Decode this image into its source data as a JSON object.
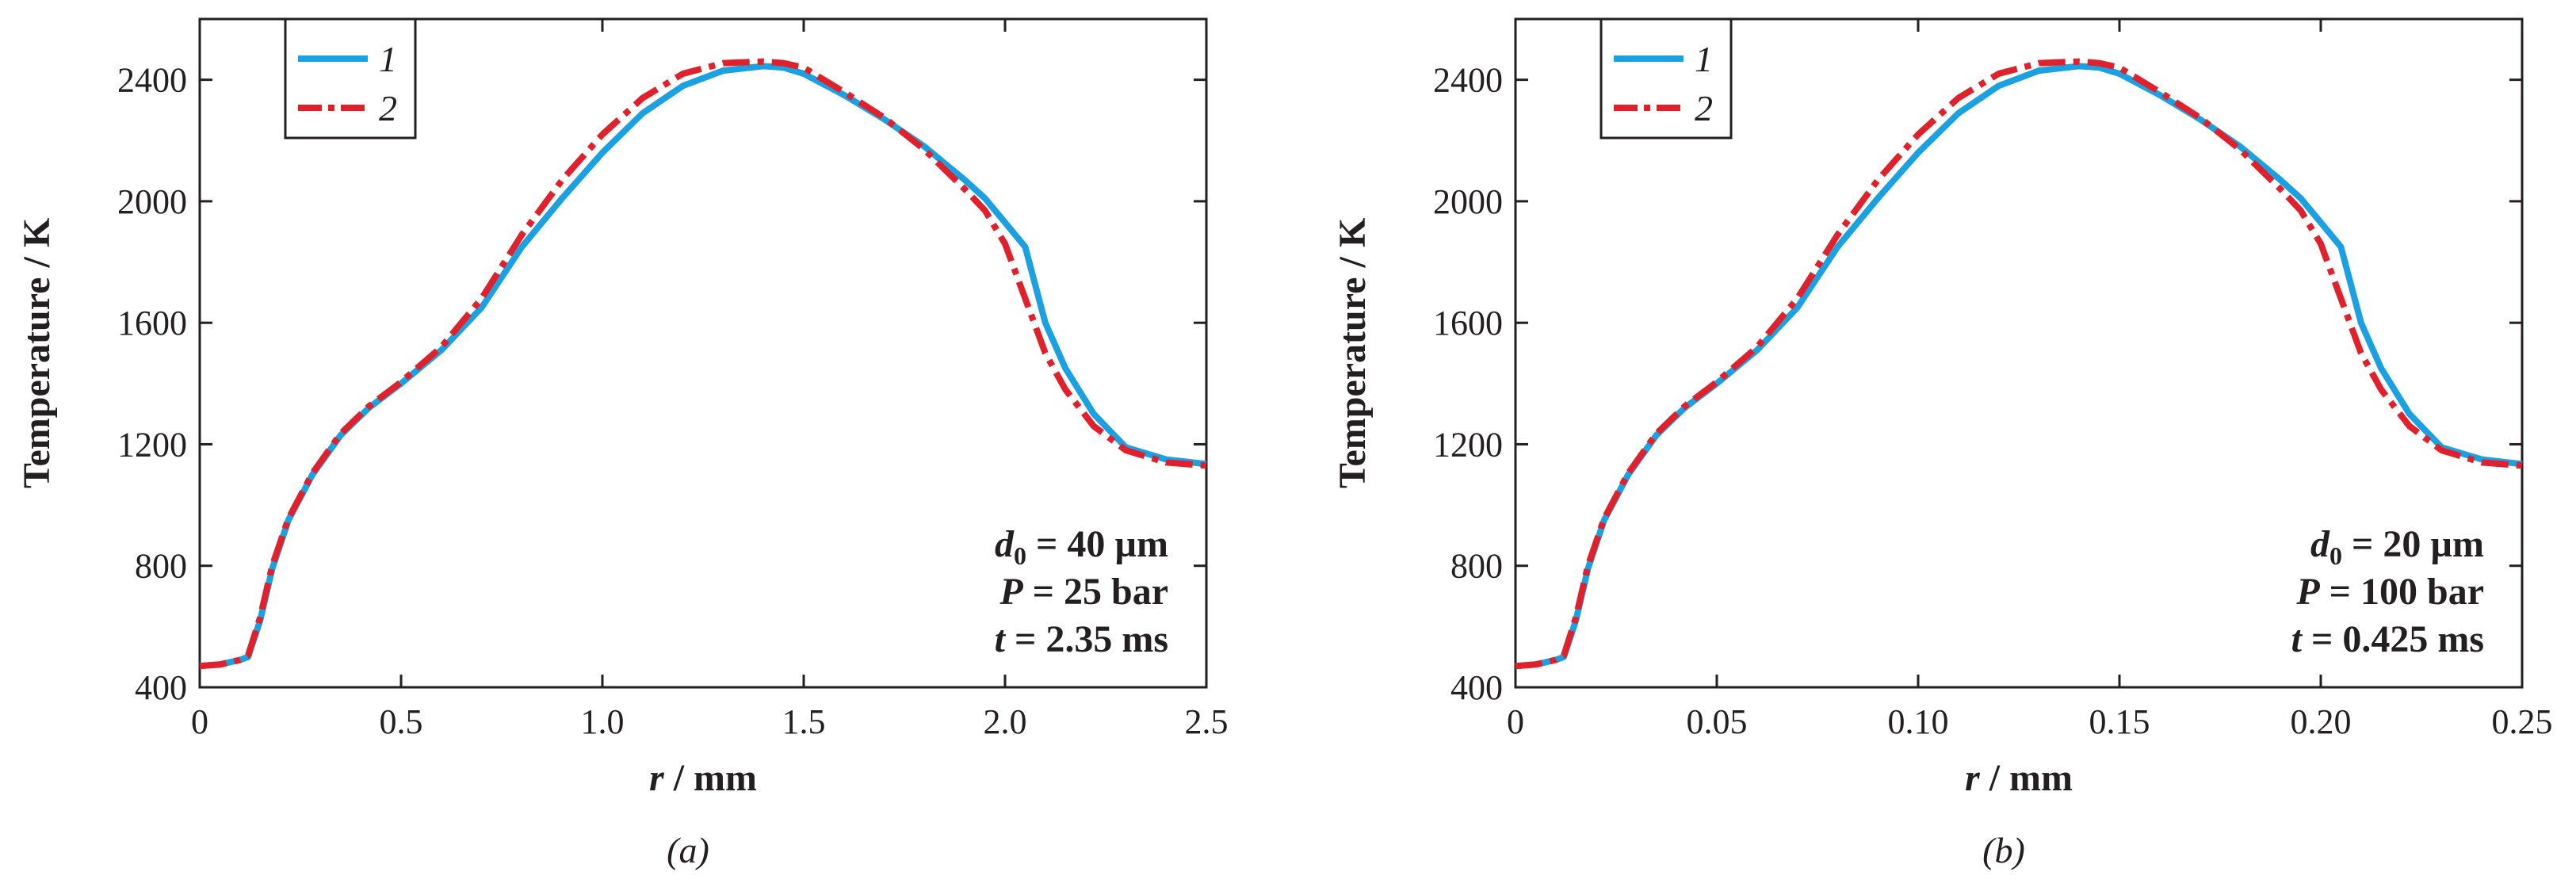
{
  "figure_captions": [
    "(a)",
    "(b)"
  ],
  "legend_entries": [
    "1",
    "2"
  ],
  "colors": {
    "series_1": "#1ba1e2",
    "series_2": "#e0202a",
    "axis": "#231f20"
  },
  "chart_data": [
    {
      "type": "line",
      "panel": "(a)",
      "title": "",
      "xlabel": "r / mm",
      "ylabel": "Temperature / K",
      "xlim": [
        0,
        2.5
      ],
      "ylim": [
        400,
        2600
      ],
      "xticks": [
        0,
        0.5,
        1.0,
        1.5,
        2.0,
        2.5
      ],
      "xtick_labels": [
        "0",
        "0.5",
        "1.0",
        "1.5",
        "2.0",
        "2.5"
      ],
      "yticks": [
        400,
        800,
        1200,
        1600,
        2000,
        2400
      ],
      "ytick_labels": [
        "400",
        "800",
        "1200",
        "1600",
        "2000",
        "2400"
      ],
      "legend": "top-left",
      "annotation": [
        {
          "var": "d",
          "sub": "0",
          "rest": " = 40 µm"
        },
        {
          "var": "P",
          "sub": "",
          "rest": " = 25 bar"
        },
        {
          "var": "t",
          "sub": "",
          "rest": " = 2.35 ms"
        }
      ],
      "series": [
        {
          "name": "1",
          "x": [
            0,
            0.05,
            0.1,
            0.12,
            0.15,
            0.18,
            0.22,
            0.28,
            0.35,
            0.42,
            0.5,
            0.6,
            0.7,
            0.8,
            0.9,
            1.0,
            1.1,
            1.2,
            1.3,
            1.4,
            1.45,
            1.5,
            1.6,
            1.7,
            1.8,
            1.9,
            1.95,
            2.0,
            2.05,
            2.1,
            2.15,
            2.22,
            2.3,
            2.4,
            2.5
          ],
          "values": [
            470,
            475,
            490,
            500,
            620,
            790,
            950,
            1100,
            1230,
            1320,
            1400,
            1510,
            1650,
            1850,
            2010,
            2160,
            2290,
            2380,
            2430,
            2445,
            2440,
            2420,
            2350,
            2270,
            2180,
            2070,
            2010,
            1930,
            1850,
            1600,
            1450,
            1300,
            1190,
            1150,
            1135
          ]
        },
        {
          "name": "2",
          "x": [
            0,
            0.05,
            0.1,
            0.12,
            0.15,
            0.18,
            0.22,
            0.28,
            0.35,
            0.42,
            0.5,
            0.6,
            0.7,
            0.8,
            0.9,
            1.0,
            1.1,
            1.2,
            1.3,
            1.4,
            1.45,
            1.5,
            1.6,
            1.7,
            1.8,
            1.9,
            1.95,
            2.0,
            2.05,
            2.1,
            2.15,
            2.22,
            2.3,
            2.4,
            2.5
          ],
          "values": [
            470,
            475,
            490,
            505,
            630,
            800,
            955,
            1105,
            1235,
            1325,
            1405,
            1520,
            1680,
            1890,
            2070,
            2220,
            2340,
            2420,
            2455,
            2460,
            2455,
            2440,
            2360,
            2275,
            2170,
            2040,
            1970,
            1860,
            1680,
            1500,
            1380,
            1260,
            1180,
            1140,
            1130
          ]
        }
      ]
    },
    {
      "type": "line",
      "panel": "(b)",
      "title": "",
      "xlabel": "r / mm",
      "ylabel": "Temperature / K",
      "xlim": [
        0,
        0.25
      ],
      "ylim": [
        400,
        2600
      ],
      "xticks": [
        0,
        0.05,
        0.1,
        0.15,
        0.2,
        0.25
      ],
      "xtick_labels": [
        "0",
        "0.05",
        "0.10",
        "0.15",
        "0.20",
        "0.25"
      ],
      "yticks": [
        400,
        800,
        1200,
        1600,
        2000,
        2400
      ],
      "ytick_labels": [
        "400",
        "800",
        "1200",
        "1600",
        "2000",
        "2400"
      ],
      "legend": "top-left",
      "annotation": [
        {
          "var": "d",
          "sub": "0",
          "rest": " = 20 µm"
        },
        {
          "var": "P",
          "sub": "",
          "rest": " = 100 bar"
        },
        {
          "var": "t",
          "sub": "",
          "rest": " = 0.425 ms"
        }
      ],
      "series": [
        {
          "name": "1",
          "x": [
            0,
            0.005,
            0.01,
            0.012,
            0.015,
            0.018,
            0.022,
            0.028,
            0.035,
            0.042,
            0.05,
            0.06,
            0.07,
            0.08,
            0.09,
            0.1,
            0.11,
            0.12,
            0.13,
            0.14,
            0.145,
            0.15,
            0.16,
            0.17,
            0.18,
            0.19,
            0.195,
            0.2,
            0.205,
            0.21,
            0.215,
            0.222,
            0.23,
            0.24,
            0.25
          ],
          "values": [
            470,
            475,
            490,
            500,
            620,
            790,
            950,
            1100,
            1230,
            1320,
            1400,
            1510,
            1650,
            1850,
            2010,
            2160,
            2290,
            2380,
            2430,
            2445,
            2440,
            2420,
            2350,
            2270,
            2180,
            2070,
            2010,
            1930,
            1850,
            1600,
            1450,
            1300,
            1190,
            1150,
            1135
          ]
        },
        {
          "name": "2",
          "x": [
            0,
            0.005,
            0.01,
            0.012,
            0.015,
            0.018,
            0.022,
            0.028,
            0.035,
            0.042,
            0.05,
            0.06,
            0.07,
            0.08,
            0.09,
            0.1,
            0.11,
            0.12,
            0.13,
            0.14,
            0.145,
            0.15,
            0.16,
            0.17,
            0.18,
            0.19,
            0.195,
            0.2,
            0.205,
            0.21,
            0.215,
            0.222,
            0.23,
            0.24,
            0.25
          ],
          "values": [
            470,
            475,
            490,
            505,
            630,
            800,
            955,
            1105,
            1235,
            1325,
            1405,
            1520,
            1680,
            1890,
            2070,
            2220,
            2340,
            2420,
            2455,
            2460,
            2455,
            2440,
            2360,
            2275,
            2170,
            2040,
            1970,
            1860,
            1680,
            1500,
            1380,
            1260,
            1180,
            1140,
            1130
          ]
        }
      ]
    }
  ]
}
